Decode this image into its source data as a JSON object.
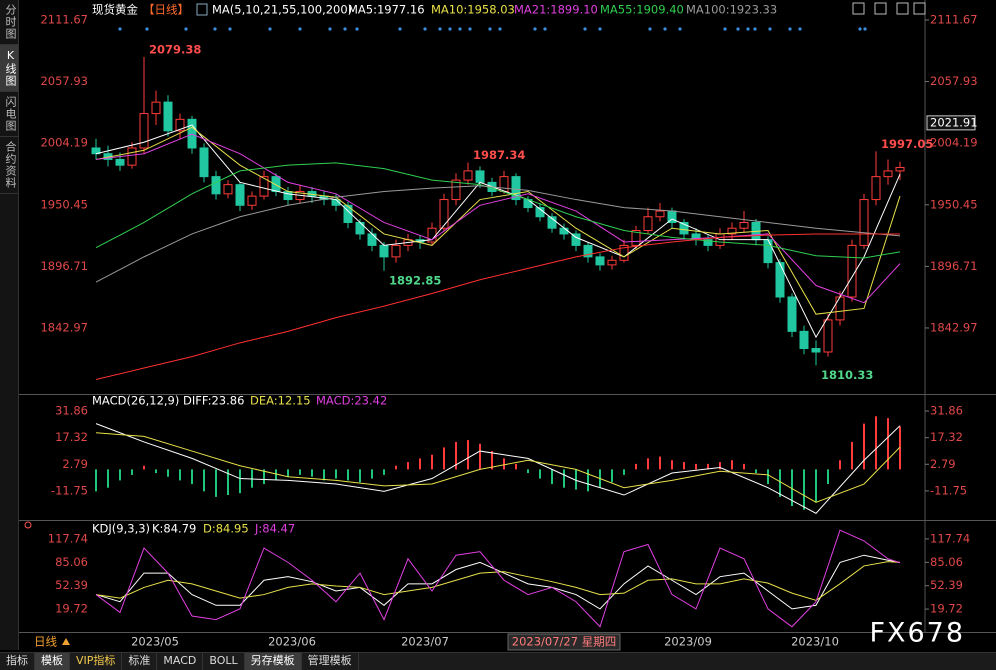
{
  "header": {
    "symbol": "现货黄金",
    "period": "【日线】"
  },
  "sidebar": [
    "分时图",
    "K线图",
    "闪电图",
    "合约资料"
  ],
  "chart_data": [
    {
      "type": "candlestick",
      "title": "MA(5,10,21,55,100,200)",
      "up_color": "#ff3b3b",
      "down_color": "#20c7a0",
      "ylim": [
        1787.1,
        2113.4
      ],
      "yticks": [
        2111.67,
        2057.93,
        2004.19,
        1950.45,
        1896.71,
        1842.97
      ],
      "crosshair_price": 2021.91,
      "candles": [
        [
          2000,
          2008,
          1990,
          1995
        ],
        [
          1995,
          2002,
          1984,
          1990
        ],
        [
          1990,
          1996,
          1980,
          1985
        ],
        [
          1985,
          2005,
          1982,
          2000
        ],
        [
          2000,
          2079.38,
          1995,
          2030
        ],
        [
          2030,
          2050,
          2020,
          2040
        ],
        [
          2040,
          2046,
          2010,
          2015
        ],
        [
          2015,
          2030,
          2008,
          2025
        ],
        [
          2025,
          2028,
          1995,
          2000
        ],
        [
          2000,
          2004,
          1970,
          1975
        ],
        [
          1975,
          1980,
          1955,
          1960
        ],
        [
          1960,
          1972,
          1956,
          1968
        ],
        [
          1968,
          1970,
          1945,
          1950
        ],
        [
          1950,
          1962,
          1946,
          1958
        ],
        [
          1958,
          1980,
          1955,
          1975
        ],
        [
          1975,
          1978,
          1958,
          1962
        ],
        [
          1962,
          1966,
          1950,
          1955
        ],
        [
          1955,
          1968,
          1952,
          1962
        ],
        [
          1962,
          1966,
          1952,
          1958
        ],
        [
          1958,
          1962,
          1950,
          1955
        ],
        [
          1955,
          1960,
          1945,
          1950
        ],
        [
          1950,
          1953,
          1930,
          1935
        ],
        [
          1935,
          1938,
          1920,
          1925
        ],
        [
          1925,
          1930,
          1910,
          1915
        ],
        [
          1915,
          1918,
          1892.85,
          1905
        ],
        [
          1905,
          1920,
          1900,
          1915
        ],
        [
          1915,
          1925,
          1910,
          1920
        ],
        [
          1920,
          1924,
          1912,
          1918
        ],
        [
          1918,
          1935,
          1915,
          1930
        ],
        [
          1930,
          1960,
          1927,
          1955
        ],
        [
          1955,
          1978,
          1950,
          1972
        ],
        [
          1972,
          1987.34,
          1968,
          1980
        ],
        [
          1980,
          1984,
          1965,
          1970
        ],
        [
          1970,
          1974,
          1958,
          1962
        ],
        [
          1962,
          1980,
          1960,
          1975
        ],
        [
          1975,
          1978,
          1950,
          1955
        ],
        [
          1955,
          1958,
          1944,
          1948
        ],
        [
          1948,
          1952,
          1936,
          1940
        ],
        [
          1940,
          1943,
          1926,
          1930
        ],
        [
          1930,
          1934,
          1920,
          1925
        ],
        [
          1925,
          1928,
          1910,
          1915
        ],
        [
          1915,
          1918,
          1900,
          1905
        ],
        [
          1905,
          1908,
          1893,
          1898
        ],
        [
          1898,
          1906,
          1894,
          1902
        ],
        [
          1902,
          1920,
          1900,
          1915
        ],
        [
          1915,
          1932,
          1912,
          1928
        ],
        [
          1928,
          1948,
          1925,
          1940
        ],
        [
          1940,
          1952,
          1936,
          1945
        ],
        [
          1945,
          1948,
          1930,
          1935
        ],
        [
          1935,
          1938,
          1920,
          1925
        ],
        [
          1925,
          1930,
          1915,
          1920
        ],
        [
          1920,
          1924,
          1910,
          1915
        ],
        [
          1915,
          1930,
          1912,
          1925
        ],
        [
          1925,
          1935,
          1920,
          1930
        ],
        [
          1930,
          1945,
          1926,
          1935
        ],
        [
          1935,
          1938,
          1915,
          1920
        ],
        [
          1920,
          1923,
          1895,
          1900
        ],
        [
          1900,
          1903,
          1865,
          1870
        ],
        [
          1870,
          1873,
          1835,
          1840
        ],
        [
          1840,
          1845,
          1820,
          1825
        ],
        [
          1825,
          1832,
          1810.33,
          1822
        ],
        [
          1822,
          1855,
          1818,
          1850
        ],
        [
          1850,
          1875,
          1845,
          1870
        ],
        [
          1870,
          1920,
          1866,
          1915
        ],
        [
          1915,
          1960,
          1912,
          1955
        ],
        [
          1955,
          1997.05,
          1950,
          1975
        ],
        [
          1975,
          1990,
          1968,
          1980
        ],
        [
          1980,
          1988,
          1972,
          1983
        ]
      ],
      "index": [
        0,
        4,
        8,
        12,
        16,
        20,
        24,
        28,
        32,
        36,
        40,
        44,
        48,
        52,
        56,
        60,
        64,
        67
      ],
      "series": [
        {
          "name": "MA5:1977.16",
          "color": "#ffffff",
          "values": [
            1995,
            2005,
            2020,
            1970,
            1960,
            1955,
            1915,
            1920,
            1970,
            1955,
            1922,
            1905,
            1938,
            1920,
            1920,
            1835,
            1905,
            1977.16
          ]
        },
        {
          "name": "MA10:1958.03",
          "color": "#e8e04a",
          "values": [
            1990,
            1998,
            2018,
            1985,
            1962,
            1957,
            1925,
            1915,
            1955,
            1962,
            1930,
            1905,
            1930,
            1925,
            1928,
            1855,
            1860,
            1958.03
          ]
        },
        {
          "name": "MA21:1899.10",
          "color": "#e040e0",
          "values": [
            1990,
            1995,
            2012,
            1995,
            1970,
            1960,
            1935,
            1920,
            1950,
            1960,
            1945,
            1918,
            1920,
            1922,
            1925,
            1880,
            1865,
            1899.1
          ]
        },
        {
          "name": "MA55:1909.40",
          "color": "#30d050",
          "values": [
            1913,
            1935,
            1960,
            1980,
            1985,
            1987,
            1982,
            1972,
            1968,
            1955,
            1940,
            1928,
            1922,
            1918,
            1915,
            1906,
            1904,
            1909.4
          ]
        },
        {
          "name": "MA100:1923.33",
          "color": "#9a9a9a",
          "values": [
            1883,
            1905,
            1925,
            1940,
            1950,
            1957,
            1962,
            1965,
            1967,
            1963,
            1955,
            1948,
            1945,
            1940,
            1935,
            1930,
            1926,
            1923.33
          ]
        },
        {
          "color": "#ff3030",
          "values": [
            1798,
            1808,
            1818,
            1830,
            1840,
            1852,
            1862,
            1873,
            1885,
            1895,
            1905,
            1913,
            1918,
            1922,
            1924,
            1925,
            1925,
            1925
          ]
        }
      ]
    },
    {
      "type": "macd",
      "title": "MACD(26,12,9)",
      "ylim": [
        -26.55,
        39.53
      ],
      "yticks": [
        31.86,
        17.32,
        2.79,
        -11.75
      ],
      "index": [
        0,
        4,
        8,
        12,
        16,
        20,
        24,
        28,
        32,
        36,
        40,
        44,
        48,
        52,
        56,
        60,
        64,
        67
      ],
      "series": [
        {
          "name": "DIFF:23.86",
          "color": "#ffffff",
          "values": [
            25,
            15,
            6,
            -5,
            -6,
            -8,
            -12,
            -5,
            10,
            6,
            -6,
            -14,
            -2,
            1,
            -10,
            -24,
            5,
            23.86
          ]
        },
        {
          "name": "DEA:12.15",
          "color": "#e8e04a",
          "values": [
            20,
            18,
            10,
            2,
            -4,
            -6,
            -9,
            -8,
            0,
            5,
            0,
            -10,
            -6,
            -1,
            -3,
            -18,
            -8,
            12.15
          ]
        }
      ],
      "histogram": {
        "name": "MACD:23.42",
        "color": "#e040e0",
        "up_color": "#ff3b3b",
        "down_color": "#20c77a",
        "values": [
          -12,
          -10,
          -6,
          -3,
          2,
          -2,
          -4,
          -6,
          -8,
          -12,
          -15,
          -14,
          -13,
          -10,
          -8,
          -6,
          -4,
          -3,
          -4,
          -6,
          -5,
          -6,
          -7,
          -5,
          -3,
          2,
          4,
          6,
          8,
          12,
          15,
          16,
          14,
          10,
          6,
          3,
          -2,
          -5,
          -8,
          -10,
          -11,
          -12,
          -10,
          -7,
          -3,
          3,
          6,
          7,
          5,
          4,
          3,
          3,
          4,
          5,
          3,
          -2,
          -8,
          -15,
          -20,
          -22,
          -18,
          -8,
          5,
          15,
          25,
          29,
          28,
          23.42
        ]
      }
    },
    {
      "type": "kdj",
      "title": "KDJ(9,3,3)",
      "ylim": [
        -12.3,
        141.4
      ],
      "yticks": [
        117.74,
        85.06,
        52.39,
        19.72
      ],
      "index": [
        0,
        2,
        4,
        6,
        8,
        10,
        12,
        14,
        16,
        18,
        20,
        22,
        24,
        26,
        28,
        30,
        32,
        34,
        36,
        38,
        40,
        42,
        44,
        46,
        48,
        50,
        52,
        54,
        56,
        58,
        60,
        62,
        64,
        66,
        67
      ],
      "series": [
        {
          "name": "K:84.79",
          "color": "#ffffff",
          "values": [
            40,
            30,
            70,
            70,
            40,
            25,
            25,
            60,
            65,
            58,
            45,
            50,
            25,
            55,
            55,
            75,
            85,
            70,
            55,
            50,
            40,
            20,
            55,
            80,
            60,
            40,
            65,
            70,
            45,
            20,
            25,
            85,
            95,
            88,
            84.79
          ]
        },
        {
          "name": "D:84.95",
          "color": "#e8e04a",
          "values": [
            40,
            35,
            50,
            60,
            55,
            45,
            35,
            40,
            50,
            55,
            52,
            50,
            40,
            45,
            50,
            60,
            70,
            72,
            65,
            58,
            50,
            40,
            42,
            60,
            62,
            55,
            55,
            62,
            56,
            42,
            32,
            55,
            80,
            86,
            84.95
          ]
        },
        {
          "name": "J:84.47",
          "color": "#e040e0",
          "values": [
            40,
            15,
            105,
            70,
            10,
            5,
            20,
            105,
            85,
            60,
            30,
            70,
            5,
            90,
            45,
            95,
            100,
            60,
            40,
            50,
            30,
            -5,
            100,
            110,
            40,
            20,
            105,
            90,
            20,
            -5,
            30,
            130,
            115,
            90,
            84.47
          ]
        }
      ]
    }
  ],
  "x_axis": {
    "labels": [
      "2023/05",
      "2023/06",
      "2023/07",
      "2023/09",
      "2023/10"
    ],
    "crosshair_date": "2023/07/27 星期四"
  },
  "period_button": "日线",
  "toolbar": [
    "指标",
    "模板",
    "VIP指标",
    "标准",
    "MACD",
    "BOLL",
    "另存模板",
    "管理模板"
  ],
  "watermark": "FX678"
}
